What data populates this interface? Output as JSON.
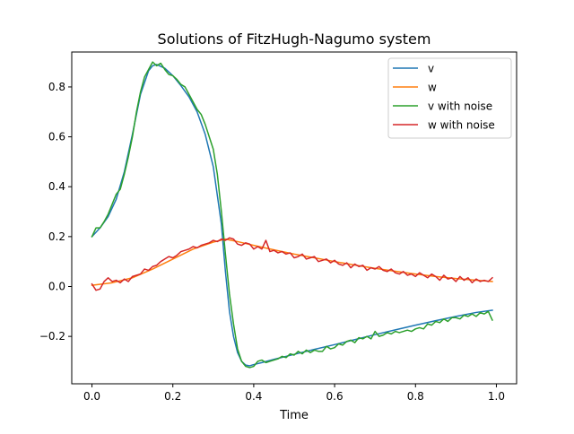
{
  "chart_data": {
    "type": "line",
    "title": "Solutions of FitzHugh-Nagumo system",
    "xlabel": "Time",
    "ylabel": "",
    "xlim": [
      -0.05,
      1.05
    ],
    "ylim": [
      -0.39,
      0.94
    ],
    "xticks": [
      0.0,
      0.2,
      0.4,
      0.6,
      0.8,
      1.0
    ],
    "xtick_labels": [
      "0.0",
      "0.2",
      "0.4",
      "0.6",
      "0.8",
      "1.0"
    ],
    "yticks": [
      -0.2,
      0.0,
      0.2,
      0.4,
      0.6,
      0.8
    ],
    "ytick_labels": [
      "−0.2",
      "0.0",
      "0.2",
      "0.4",
      "0.6",
      "0.8"
    ],
    "grid": false,
    "legend_position": "top-right",
    "series": [
      {
        "name": "v",
        "color": "#1f77b4",
        "x": [
          0.0,
          0.02,
          0.04,
          0.06,
          0.08,
          0.1,
          0.12,
          0.14,
          0.15,
          0.16,
          0.18,
          0.2,
          0.22,
          0.24,
          0.26,
          0.28,
          0.3,
          0.32,
          0.33,
          0.34,
          0.35,
          0.36,
          0.37,
          0.38,
          0.39,
          0.4,
          0.42,
          0.45,
          0.5,
          0.55,
          0.6,
          0.65,
          0.7,
          0.75,
          0.8,
          0.85,
          0.9,
          0.95,
          0.99
        ],
        "y": [
          0.2,
          0.235,
          0.28,
          0.35,
          0.46,
          0.61,
          0.77,
          0.865,
          0.885,
          0.89,
          0.875,
          0.845,
          0.805,
          0.76,
          0.7,
          0.61,
          0.48,
          0.25,
          0.06,
          -0.1,
          -0.2,
          -0.265,
          -0.3,
          -0.315,
          -0.318,
          -0.313,
          -0.305,
          -0.292,
          -0.272,
          -0.252,
          -0.233,
          -0.213,
          -0.193,
          -0.174,
          -0.155,
          -0.137,
          -0.12,
          -0.104,
          -0.095
        ]
      },
      {
        "name": "w",
        "color": "#ff7f0e",
        "x": [
          0.0,
          0.05,
          0.1,
          0.15,
          0.2,
          0.25,
          0.3,
          0.33,
          0.36,
          0.4,
          0.45,
          0.5,
          0.55,
          0.6,
          0.65,
          0.7,
          0.75,
          0.8,
          0.85,
          0.9,
          0.95,
          0.99
        ],
        "y": [
          0.005,
          0.015,
          0.035,
          0.07,
          0.11,
          0.15,
          0.178,
          0.19,
          0.18,
          0.165,
          0.147,
          0.13,
          0.115,
          0.1,
          0.086,
          0.073,
          0.061,
          0.05,
          0.04,
          0.032,
          0.025,
          0.02
        ]
      },
      {
        "name": "v with noise",
        "color": "#2ca02c",
        "x": [
          0.0,
          0.01,
          0.02,
          0.03,
          0.04,
          0.05,
          0.06,
          0.07,
          0.08,
          0.09,
          0.1,
          0.11,
          0.12,
          0.13,
          0.14,
          0.15,
          0.16,
          0.17,
          0.18,
          0.19,
          0.2,
          0.21,
          0.22,
          0.23,
          0.24,
          0.25,
          0.26,
          0.27,
          0.28,
          0.29,
          0.3,
          0.31,
          0.32,
          0.33,
          0.34,
          0.35,
          0.36,
          0.37,
          0.38,
          0.39,
          0.4,
          0.41,
          0.42,
          0.43,
          0.44,
          0.45,
          0.46,
          0.47,
          0.48,
          0.49,
          0.5,
          0.51,
          0.52,
          0.53,
          0.54,
          0.55,
          0.56,
          0.57,
          0.58,
          0.59,
          0.6,
          0.61,
          0.62,
          0.63,
          0.64,
          0.65,
          0.66,
          0.67,
          0.68,
          0.69,
          0.7,
          0.71,
          0.72,
          0.73,
          0.74,
          0.75,
          0.76,
          0.77,
          0.78,
          0.79,
          0.8,
          0.81,
          0.82,
          0.83,
          0.84,
          0.85,
          0.86,
          0.87,
          0.88,
          0.89,
          0.9,
          0.91,
          0.92,
          0.93,
          0.94,
          0.95,
          0.96,
          0.97,
          0.98,
          0.99
        ],
        "y": [
          0.2,
          0.235,
          0.235,
          0.26,
          0.29,
          0.33,
          0.37,
          0.39,
          0.45,
          0.52,
          0.6,
          0.7,
          0.78,
          0.84,
          0.87,
          0.9,
          0.885,
          0.895,
          0.87,
          0.85,
          0.845,
          0.83,
          0.81,
          0.8,
          0.77,
          0.74,
          0.71,
          0.69,
          0.65,
          0.6,
          0.55,
          0.45,
          0.3,
          0.13,
          -0.03,
          -0.15,
          -0.25,
          -0.3,
          -0.32,
          -0.325,
          -0.32,
          -0.3,
          -0.295,
          -0.305,
          -0.3,
          -0.295,
          -0.29,
          -0.28,
          -0.285,
          -0.27,
          -0.275,
          -0.26,
          -0.27,
          -0.255,
          -0.265,
          -0.255,
          -0.26,
          -0.26,
          -0.24,
          -0.25,
          -0.245,
          -0.23,
          -0.235,
          -0.22,
          -0.215,
          -0.225,
          -0.205,
          -0.21,
          -0.2,
          -0.21,
          -0.18,
          -0.2,
          -0.195,
          -0.185,
          -0.19,
          -0.18,
          -0.185,
          -0.18,
          -0.175,
          -0.18,
          -0.17,
          -0.165,
          -0.17,
          -0.15,
          -0.155,
          -0.14,
          -0.145,
          -0.13,
          -0.14,
          -0.125,
          -0.125,
          -0.13,
          -0.115,
          -0.12,
          -0.11,
          -0.12,
          -0.105,
          -0.11,
          -0.1,
          -0.135
        ]
      },
      {
        "name": "w with noise",
        "color": "#d62728",
        "x": [
          0.0,
          0.01,
          0.02,
          0.03,
          0.04,
          0.05,
          0.06,
          0.07,
          0.08,
          0.09,
          0.1,
          0.11,
          0.12,
          0.13,
          0.14,
          0.15,
          0.16,
          0.17,
          0.18,
          0.19,
          0.2,
          0.21,
          0.22,
          0.23,
          0.24,
          0.25,
          0.26,
          0.27,
          0.28,
          0.29,
          0.3,
          0.31,
          0.32,
          0.33,
          0.34,
          0.35,
          0.36,
          0.37,
          0.38,
          0.39,
          0.4,
          0.41,
          0.42,
          0.43,
          0.44,
          0.45,
          0.46,
          0.47,
          0.48,
          0.49,
          0.5,
          0.51,
          0.52,
          0.53,
          0.54,
          0.55,
          0.56,
          0.57,
          0.58,
          0.59,
          0.6,
          0.61,
          0.62,
          0.63,
          0.64,
          0.65,
          0.66,
          0.67,
          0.68,
          0.69,
          0.7,
          0.71,
          0.72,
          0.73,
          0.74,
          0.75,
          0.76,
          0.77,
          0.78,
          0.79,
          0.8,
          0.81,
          0.82,
          0.83,
          0.84,
          0.85,
          0.86,
          0.87,
          0.88,
          0.89,
          0.9,
          0.91,
          0.92,
          0.93,
          0.94,
          0.95,
          0.96,
          0.97,
          0.98,
          0.99
        ],
        "y": [
          0.01,
          -0.015,
          -0.01,
          0.02,
          0.035,
          0.02,
          0.025,
          0.015,
          0.03,
          0.02,
          0.04,
          0.045,
          0.05,
          0.07,
          0.065,
          0.08,
          0.085,
          0.1,
          0.11,
          0.12,
          0.115,
          0.125,
          0.14,
          0.145,
          0.15,
          0.16,
          0.155,
          0.165,
          0.17,
          0.175,
          0.185,
          0.18,
          0.19,
          0.185,
          0.195,
          0.19,
          0.17,
          0.165,
          0.175,
          0.17,
          0.15,
          0.16,
          0.15,
          0.185,
          0.14,
          0.145,
          0.135,
          0.14,
          0.13,
          0.135,
          0.115,
          0.12,
          0.13,
          0.11,
          0.115,
          0.12,
          0.1,
          0.105,
          0.11,
          0.095,
          0.105,
          0.09,
          0.085,
          0.095,
          0.075,
          0.09,
          0.08,
          0.085,
          0.065,
          0.075,
          0.07,
          0.08,
          0.065,
          0.06,
          0.07,
          0.055,
          0.05,
          0.06,
          0.045,
          0.05,
          0.04,
          0.055,
          0.045,
          0.035,
          0.05,
          0.04,
          0.025,
          0.045,
          0.03,
          0.035,
          0.02,
          0.04,
          0.025,
          0.035,
          0.015,
          0.03,
          0.02,
          0.025,
          0.02,
          0.035
        ]
      }
    ]
  }
}
